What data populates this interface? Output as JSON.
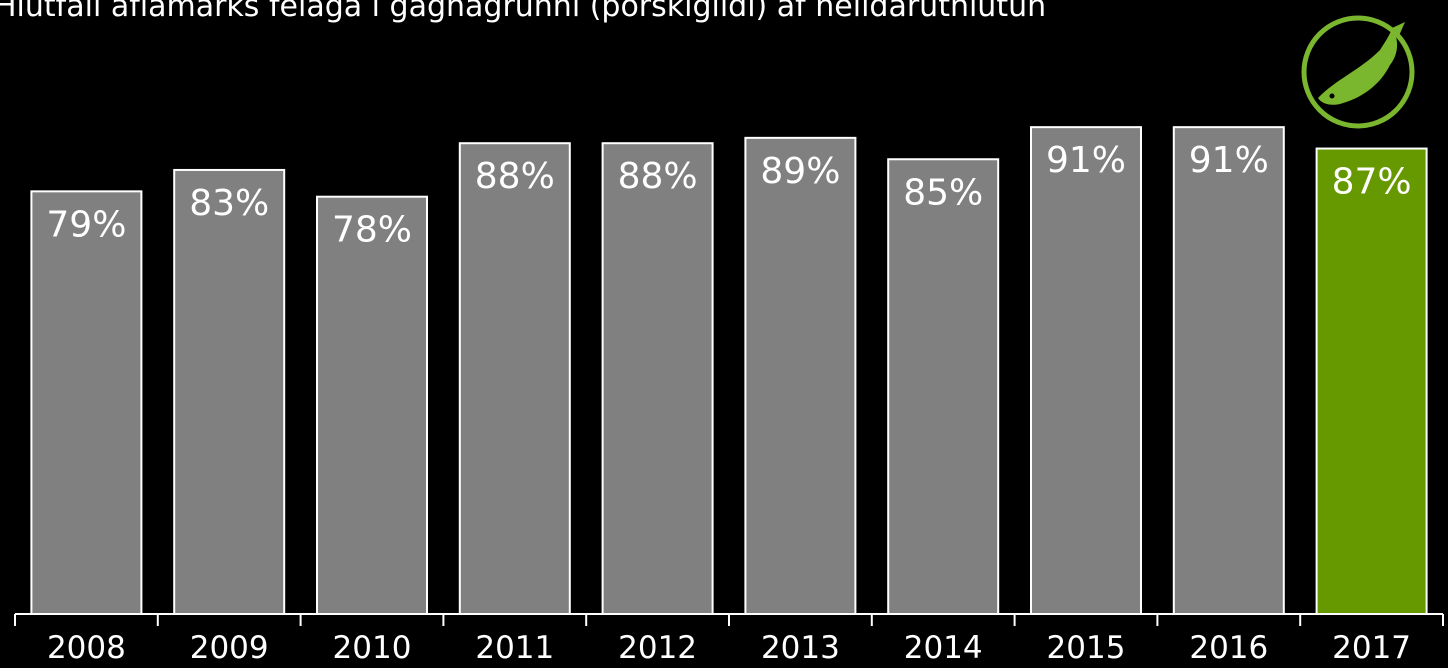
{
  "chart_data": {
    "type": "bar",
    "title": "Hlutfall aflamarks félaga í gagnagrunni (þorskígildi) af heildarúthlutun",
    "categories": [
      "2008",
      "2009",
      "2010",
      "2011",
      "2012",
      "2013",
      "2014",
      "2015",
      "2016",
      "2017"
    ],
    "values": [
      79,
      83,
      78,
      88,
      88,
      89,
      85,
      91,
      91,
      87
    ],
    "value_labels": [
      "79%",
      "83%",
      "78%",
      "88%",
      "88%",
      "89%",
      "85%",
      "91%",
      "91%",
      "87%"
    ],
    "colors": [
      "#808080",
      "#808080",
      "#808080",
      "#808080",
      "#808080",
      "#808080",
      "#808080",
      "#808080",
      "#808080",
      "#669900"
    ],
    "ylim": [
      0,
      100
    ]
  }
}
